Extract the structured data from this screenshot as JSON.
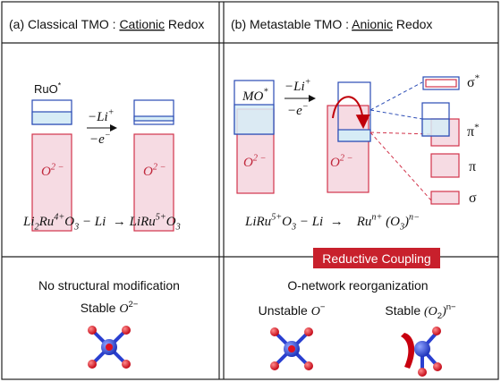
{
  "panel_a": {
    "title": [
      "(a) Classical TMO : ",
      "Cationic",
      " Redox"
    ],
    "metal_band": [
      "RuO",
      "*"
    ],
    "arrow_top": [
      "−Li",
      "+"
    ],
    "arrow_bottom": [
      "−e",
      "−"
    ],
    "oxygen_band_before": [
      "O",
      "2 −"
    ],
    "oxygen_band_after": [
      "O",
      "2 −"
    ],
    "equation": [
      "Li",
      "2",
      "Ru",
      "4+",
      "O",
      "3",
      " − Li  → LiRu",
      "5+",
      "O",
      "3"
    ]
  },
  "panel_b": {
    "title": [
      "(b) Metastable TMO : ",
      "Anionic",
      " Redox"
    ],
    "metal_band": [
      "MO",
      "*"
    ],
    "arrow_top": [
      "−Li",
      "+"
    ],
    "arrow_bottom": [
      "−e",
      "−"
    ],
    "oxygen_band_before": [
      "O",
      "2 −"
    ],
    "oxygen_band_after": [
      "O",
      "2 −"
    ],
    "levels": [
      [
        "σ",
        "*"
      ],
      [
        "π",
        "*"
      ],
      [
        "π"
      ],
      [
        "σ"
      ]
    ],
    "equation": [
      "LiRu",
      "5+",
      "O",
      "3",
      " − Li  →    Ru",
      "n+",
      " (O",
      "3",
      ")",
      "n−"
    ]
  },
  "banner": "Reductive Coupling",
  "bottom_left": {
    "heading": "No structural modification",
    "label": [
      "Stable ",
      "O",
      "2−"
    ]
  },
  "bottom_right": {
    "heading": "O-network reorganization",
    "label_unstable": [
      "Unstable ",
      "O",
      "−"
    ],
    "label_stable": [
      "Stable ",
      "(O",
      "2",
      ")",
      "n−"
    ]
  }
}
